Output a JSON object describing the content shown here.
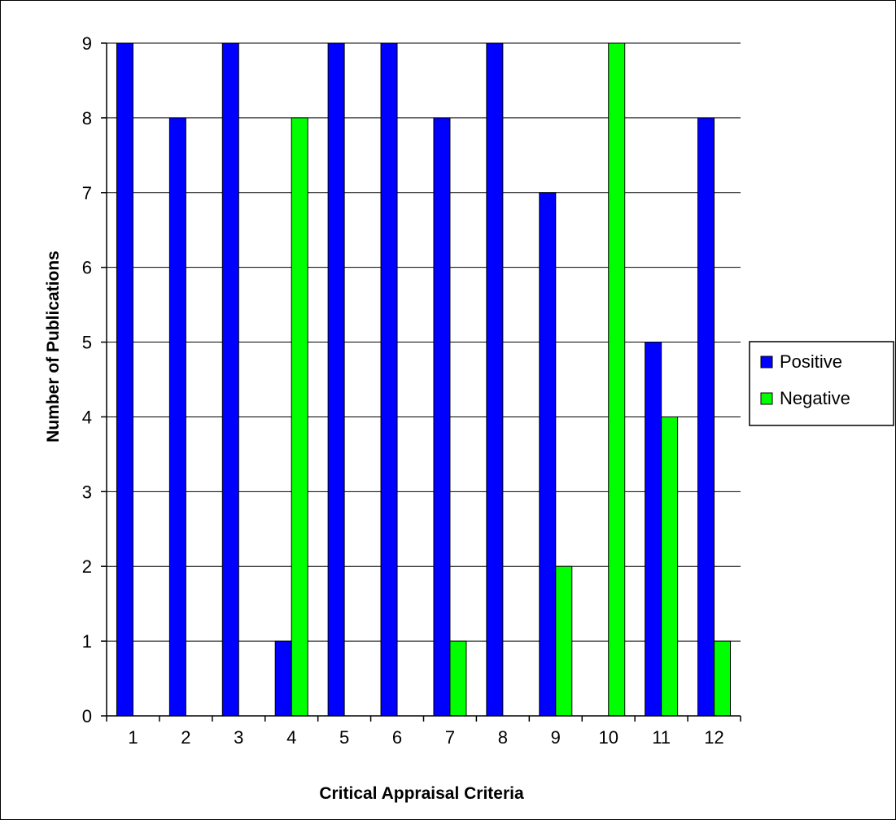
{
  "chart_data": {
    "type": "bar",
    "title": "",
    "xlabel": "Critical Appraisal Criteria",
    "ylabel": "Number of Publications",
    "categories": [
      "1",
      "2",
      "3",
      "4",
      "5",
      "6",
      "7",
      "8",
      "9",
      "10",
      "11",
      "12"
    ],
    "series": [
      {
        "name": "Positive",
        "color": "#0000ff",
        "values": [
          9,
          8,
          9,
          1,
          9,
          9,
          8,
          9,
          7,
          0,
          5,
          8
        ]
      },
      {
        "name": "Negative",
        "color": "#00ff00",
        "values": [
          0,
          0,
          0,
          8,
          0,
          0,
          1,
          0,
          2,
          9,
          4,
          1
        ]
      }
    ],
    "ylim": [
      0,
      9
    ],
    "yticks": [
      "0",
      "1",
      "2",
      "3",
      "4",
      "5",
      "6",
      "7",
      "8",
      "9"
    ],
    "grid": true,
    "legend": "right"
  }
}
